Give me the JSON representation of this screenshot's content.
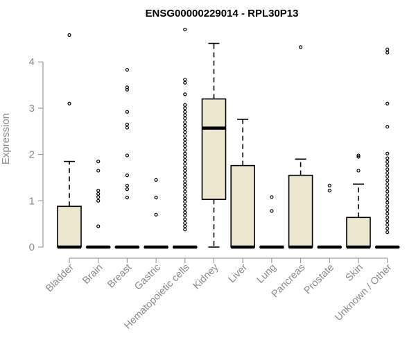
{
  "chart_data": {
    "type": "boxplot",
    "title": "ENSG00000229014 - RPL30P13",
    "ylabel": "Expression",
    "xlabel": "",
    "ylim": [
      0,
      4.75
    ],
    "yticks": [
      0,
      1,
      2,
      3,
      4
    ],
    "box_fill": "#ede7cf",
    "box_stroke": "#000000",
    "categories": [
      "Bladder",
      "Brain",
      "Breast",
      "Gastric",
      "Hematopoietic cells",
      "Kidney",
      "Liver",
      "Lung",
      "Pancreas",
      "Prostate",
      "Skin",
      "Unknown / Other"
    ],
    "boxes": [
      {
        "category": "Bladder",
        "q1": 0,
        "median": 0,
        "q3": 0.88,
        "whisker_low": 0,
        "whisker_high": 1.85,
        "outliers": [
          3.1,
          4.58
        ]
      },
      {
        "category": "Brain",
        "q1": 0,
        "median": 0,
        "q3": 0,
        "whisker_low": 0,
        "whisker_high": 0,
        "outliers": [
          0.45,
          1.0,
          1.08,
          1.15,
          1.22,
          1.65,
          1.85
        ]
      },
      {
        "category": "Breast",
        "q1": 0,
        "median": 0,
        "q3": 0,
        "whisker_low": 0,
        "whisker_high": 0,
        "outliers": [
          1.07,
          1.25,
          1.33,
          1.55,
          1.98,
          2.58,
          2.65,
          2.92,
          3.4,
          3.45,
          3.83
        ]
      },
      {
        "category": "Gastric",
        "q1": 0,
        "median": 0,
        "q3": 0,
        "whisker_low": 0,
        "whisker_high": 0,
        "outliers": [
          0.7,
          1.07,
          1.45
        ]
      },
      {
        "category": "Hematopoietic cells",
        "q1": 0,
        "median": 0,
        "q3": 0,
        "whisker_low": 0,
        "whisker_high": 0,
        "outliers": [
          0.38,
          0.45,
          0.52,
          0.6,
          0.68,
          0.75,
          0.82,
          0.9,
          0.98,
          1.05,
          1.12,
          1.2,
          1.28,
          1.35,
          1.42,
          1.5,
          1.58,
          1.65,
          1.72,
          1.8,
          1.88,
          1.95,
          2.02,
          2.1,
          2.18,
          2.25,
          2.32,
          2.4,
          2.48,
          2.55,
          2.62,
          2.7,
          2.78,
          2.85,
          2.92,
          3.0,
          3.07,
          3.3,
          3.55,
          3.62,
          4.7
        ]
      },
      {
        "category": "Kidney",
        "q1": 1.03,
        "median": 2.57,
        "q3": 3.2,
        "whisker_low": 0,
        "whisker_high": 4.4,
        "outliers": []
      },
      {
        "category": "Liver",
        "q1": 0,
        "median": 0,
        "q3": 1.76,
        "whisker_low": 0,
        "whisker_high": 2.76,
        "outliers": []
      },
      {
        "category": "Lung",
        "q1": 0,
        "median": 0,
        "q3": 0,
        "whisker_low": 0,
        "whisker_high": 0,
        "outliers": [
          0.78,
          1.08
        ]
      },
      {
        "category": "Pancreas",
        "q1": 0,
        "median": 0,
        "q3": 1.55,
        "whisker_low": 0,
        "whisker_high": 1.9,
        "outliers": [
          4.32
        ]
      },
      {
        "category": "Prostate",
        "q1": 0,
        "median": 0,
        "q3": 0,
        "whisker_low": 0,
        "whisker_high": 0,
        "outliers": [
          1.22,
          1.33
        ]
      },
      {
        "category": "Skin",
        "q1": 0,
        "median": 0,
        "q3": 0.64,
        "whisker_low": 0,
        "whisker_high": 1.36,
        "outliers": [
          1.65,
          1.95,
          1.98
        ]
      },
      {
        "category": "Unknown / Other",
        "q1": 0,
        "median": 0,
        "q3": 0,
        "whisker_low": 0,
        "whisker_high": 0,
        "outliers": [
          0.32,
          0.4,
          0.48,
          0.56,
          0.64,
          0.72,
          0.8,
          0.88,
          0.96,
          1.04,
          1.12,
          1.2,
          1.28,
          1.36,
          1.44,
          1.52,
          1.6,
          1.68,
          1.76,
          1.84,
          1.92,
          2.02,
          2.6,
          3.1,
          4.2,
          4.27
        ]
      }
    ],
    "grid": false,
    "legend": "none"
  }
}
